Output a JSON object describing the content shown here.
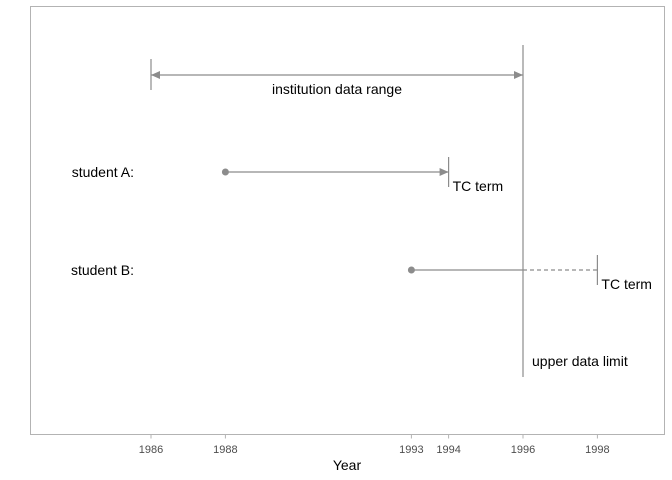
{
  "diagram": {
    "x_axis": {
      "title": "Year",
      "ticks": [
        1986,
        1988,
        1993,
        1994,
        1996,
        1998
      ]
    },
    "range": {
      "label": "institution data range",
      "start": 1986,
      "end": 1996
    },
    "upper_limit": {
      "label": "upper data limit",
      "year": 1996
    },
    "students": [
      {
        "label": "student A:",
        "start": 1988,
        "term": 1994,
        "term_label": "TC term"
      },
      {
        "label": "student B:",
        "start": 1993,
        "term": 1998,
        "term_label": "TC term"
      }
    ],
    "colors": {
      "line": "#8c8c8c",
      "text": "#000000",
      "tick_text": "#4d4d4d",
      "border": "#b3b3b3"
    }
  }
}
